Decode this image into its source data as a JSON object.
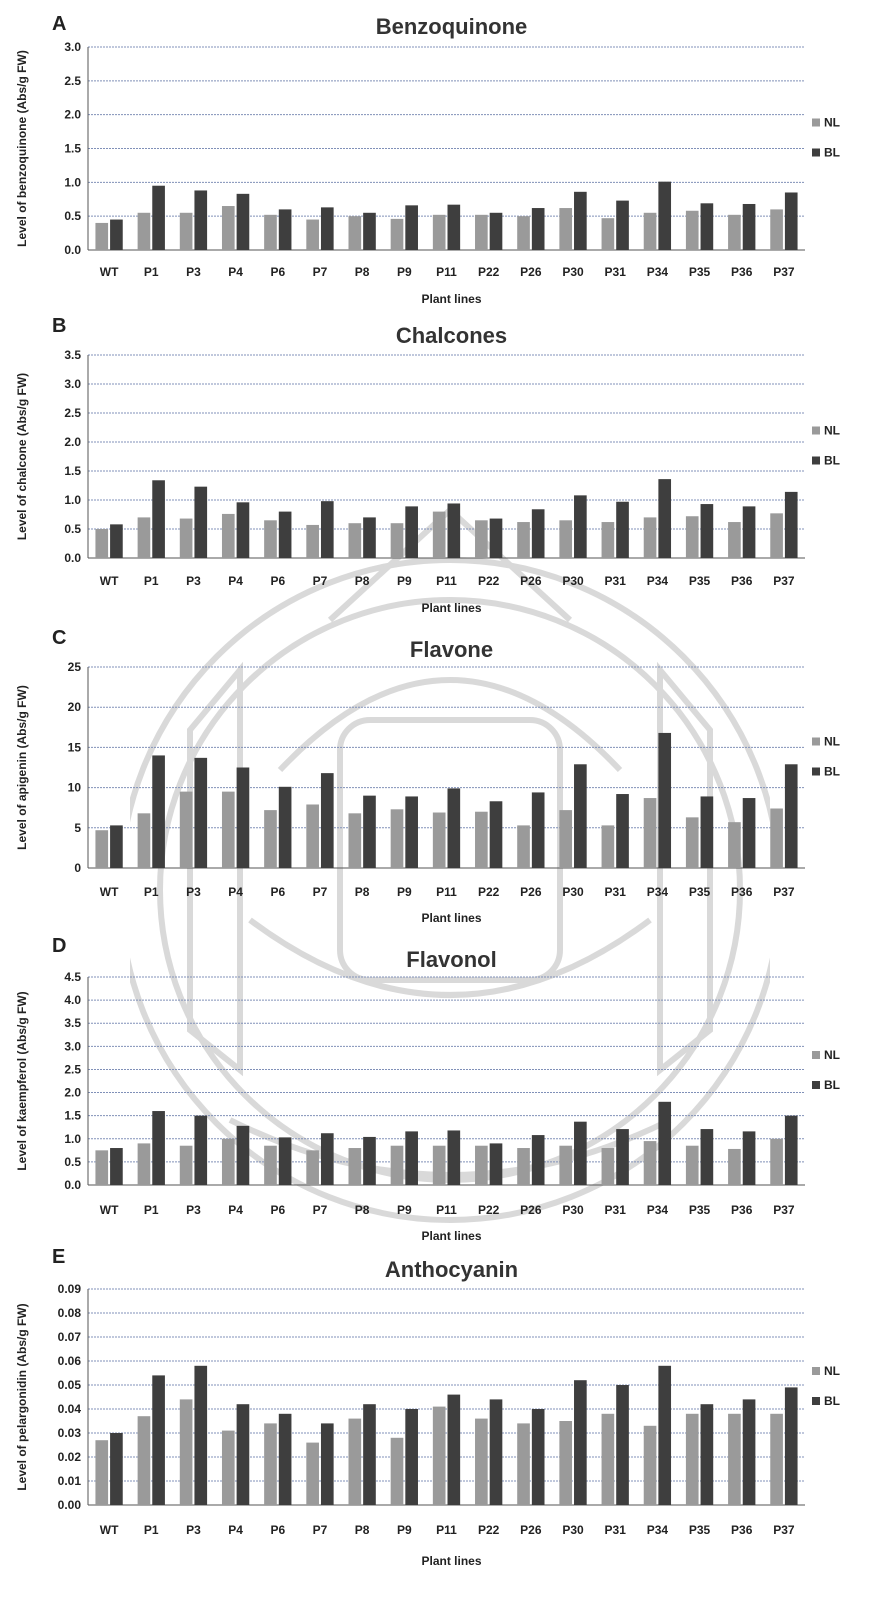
{
  "colors": {
    "nl": "#9a9a9a",
    "bl": "#3e3e3e",
    "grid": "#8090b8",
    "axis": "#555555",
    "watermark": "#b8b8b8"
  },
  "chart_data": [
    {
      "type": "bar",
      "panel": "A",
      "title": "Benzoquinone",
      "xlabel": "Plant lines",
      "ylabel": "Level of benzoquinone (Abs/g FW)",
      "ylim": [
        0,
        3.0
      ],
      "yticks": [
        "0.0",
        "0.5",
        "1.0",
        "1.5",
        "2.0",
        "2.5",
        "3.0"
      ],
      "grid": true,
      "legend": "right",
      "categories": [
        "WT",
        "P1",
        "P3",
        "P4",
        "P6",
        "P7",
        "P8",
        "P9",
        "P11",
        "P22",
        "P26",
        "P30",
        "P31",
        "P34",
        "P35",
        "P36",
        "P37"
      ],
      "series": [
        {
          "name": "NL",
          "values": [
            0.4,
            0.55,
            0.55,
            0.65,
            0.52,
            0.45,
            0.5,
            0.46,
            0.52,
            0.52,
            0.5,
            0.62,
            0.47,
            0.55,
            0.58,
            0.52,
            0.6
          ]
        },
        {
          "name": "BL",
          "values": [
            0.45,
            0.95,
            0.88,
            0.83,
            0.6,
            0.63,
            0.55,
            0.66,
            0.67,
            0.55,
            0.62,
            0.86,
            0.73,
            1.01,
            0.69,
            0.68,
            0.85
          ]
        }
      ]
    },
    {
      "type": "bar",
      "panel": "B",
      "title": "Chalcones",
      "xlabel": "Plant lines",
      "ylabel": "Level of chalcone (Abs/g FW)",
      "ylim": [
        0,
        3.5
      ],
      "yticks": [
        "0.0",
        "0.5",
        "1.0",
        "1.5",
        "2.0",
        "2.5",
        "3.0",
        "3.5"
      ],
      "grid": true,
      "legend": "right",
      "categories": [
        "WT",
        "P1",
        "P3",
        "P4",
        "P6",
        "P7",
        "P8",
        "P9",
        "P11",
        "P22",
        "P26",
        "P30",
        "P31",
        "P34",
        "P35",
        "P36",
        "P37"
      ],
      "series": [
        {
          "name": "NL",
          "values": [
            0.5,
            0.7,
            0.68,
            0.76,
            0.65,
            0.57,
            0.6,
            0.6,
            0.8,
            0.65,
            0.62,
            0.65,
            0.62,
            0.7,
            0.72,
            0.62,
            0.77
          ]
        },
        {
          "name": "BL",
          "values": [
            0.58,
            1.34,
            1.23,
            0.96,
            0.8,
            0.98,
            0.7,
            0.89,
            0.94,
            0.68,
            0.84,
            1.08,
            0.97,
            1.36,
            0.93,
            0.89,
            1.14
          ]
        }
      ]
    },
    {
      "type": "bar",
      "panel": "C",
      "title": "Flavone",
      "xlabel": "Plant lines",
      "ylabel": "Level of apigenin (Abs/g FW)",
      "ylim": [
        0,
        25
      ],
      "yticks": [
        "0",
        "5",
        "10",
        "15",
        "20",
        "25"
      ],
      "grid": true,
      "legend": "right",
      "categories": [
        "WT",
        "P1",
        "P3",
        "P4",
        "P6",
        "P7",
        "P8",
        "P9",
        "P11",
        "P22",
        "P26",
        "P30",
        "P31",
        "P34",
        "P35",
        "P36",
        "P37"
      ],
      "series": [
        {
          "name": "NL",
          "values": [
            4.7,
            6.8,
            9.5,
            9.5,
            7.2,
            7.9,
            6.8,
            7.3,
            6.9,
            7.0,
            5.3,
            7.2,
            5.3,
            8.7,
            6.3,
            5.7,
            7.4
          ]
        },
        {
          "name": "BL",
          "values": [
            5.3,
            14.0,
            13.7,
            12.5,
            10.1,
            11.8,
            9.0,
            8.9,
            9.9,
            8.3,
            9.4,
            12.9,
            9.2,
            16.8,
            8.9,
            8.7,
            12.9
          ]
        }
      ]
    },
    {
      "type": "bar",
      "panel": "D",
      "title": "Flavonol",
      "xlabel": "Plant lines",
      "ylabel": "Level of kaempferol (Abs/g FW)",
      "ylim": [
        0,
        4.5
      ],
      "yticks": [
        "0.0",
        "0.5",
        "1.0",
        "1.5",
        "2.0",
        "2.5",
        "3.0",
        "3.5",
        "4.0",
        "4.5"
      ],
      "grid": true,
      "legend": "right",
      "categories": [
        "WT",
        "P1",
        "P3",
        "P4",
        "P6",
        "P7",
        "P8",
        "P9",
        "P11",
        "P22",
        "P26",
        "P30",
        "P31",
        "P34",
        "P35",
        "P36",
        "P37"
      ],
      "series": [
        {
          "name": "NL",
          "values": [
            0.75,
            0.9,
            0.85,
            1.0,
            0.85,
            0.75,
            0.8,
            0.85,
            0.85,
            0.85,
            0.8,
            0.85,
            0.8,
            0.95,
            0.85,
            0.78,
            1.0
          ]
        },
        {
          "name": "BL",
          "values": [
            0.8,
            1.6,
            1.5,
            1.28,
            1.03,
            1.12,
            1.04,
            1.16,
            1.18,
            0.9,
            1.08,
            1.37,
            1.21,
            1.8,
            1.21,
            1.16,
            1.5
          ]
        }
      ]
    },
    {
      "type": "bar",
      "panel": "E",
      "title": "Anthocyanin",
      "xlabel": "Plant lines",
      "ylabel": "Level of pelargonidin (Abs/g FW)",
      "ylim": [
        0,
        0.09
      ],
      "yticks": [
        "0.00",
        "0.01",
        "0.02",
        "0.03",
        "0.04",
        "0.05",
        "0.06",
        "0.07",
        "0.08",
        "0.09"
      ],
      "grid": true,
      "legend": "right",
      "categories": [
        "WT",
        "P1",
        "P3",
        "P4",
        "P6",
        "P7",
        "P8",
        "P9",
        "P11",
        "P22",
        "P26",
        "P30",
        "P31",
        "P34",
        "P35",
        "P36",
        "P37"
      ],
      "series": [
        {
          "name": "NL",
          "values": [
            0.027,
            0.037,
            0.044,
            0.031,
            0.034,
            0.026,
            0.036,
            0.028,
            0.041,
            0.036,
            0.034,
            0.035,
            0.038,
            0.033,
            0.038,
            0.038,
            0.038
          ]
        },
        {
          "name": "BL",
          "values": [
            0.03,
            0.054,
            0.058,
            0.042,
            0.038,
            0.034,
            0.042,
            0.04,
            0.046,
            0.044,
            0.04,
            0.052,
            0.05,
            0.058,
            0.042,
            0.044,
            0.049
          ]
        }
      ]
    }
  ]
}
